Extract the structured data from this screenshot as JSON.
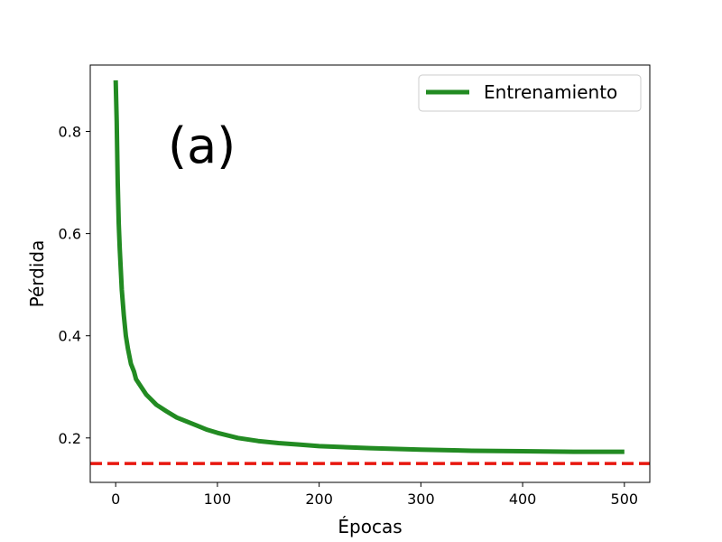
{
  "chart_data": {
    "type": "line",
    "xlabel": "Épocas",
    "ylabel": "Pérdida",
    "annotation": "(a)",
    "xlim": [
      -25,
      525
    ],
    "ylim": [
      0.113,
      0.93
    ],
    "xticks": [
      0,
      100,
      200,
      300,
      400,
      500
    ],
    "yticks": [
      0.2,
      0.4,
      0.6,
      0.8
    ],
    "xtick_labels": [
      "0",
      "100",
      "200",
      "300",
      "400",
      "500"
    ],
    "ytick_labels": [
      "0.2",
      "0.4",
      "0.6",
      "0.8"
    ],
    "legend": {
      "location": "top-right",
      "entries": [
        "Entrenamiento"
      ]
    },
    "grid": false,
    "series": [
      {
        "name": "Entrenamiento",
        "color": "#228b22",
        "style": "solid",
        "x": [
          0,
          1,
          2,
          3,
          4,
          5,
          6,
          8,
          10,
          12,
          15,
          18,
          20,
          25,
          30,
          35,
          40,
          50,
          60,
          70,
          80,
          90,
          100,
          120,
          140,
          160,
          180,
          200,
          250,
          300,
          350,
          400,
          450,
          500
        ],
        "y": [
          0.9,
          0.82,
          0.7,
          0.62,
          0.57,
          0.53,
          0.49,
          0.44,
          0.4,
          0.375,
          0.345,
          0.33,
          0.315,
          0.3,
          0.285,
          0.275,
          0.265,
          0.252,
          0.24,
          0.232,
          0.224,
          0.216,
          0.21,
          0.2,
          0.194,
          0.19,
          0.187,
          0.184,
          0.18,
          0.177,
          0.175,
          0.174,
          0.173,
          0.173
        ]
      }
    ],
    "reference_lines": [
      {
        "axis": "y",
        "value": 0.15,
        "color": "#e8170f",
        "style": "dashed"
      }
    ]
  }
}
